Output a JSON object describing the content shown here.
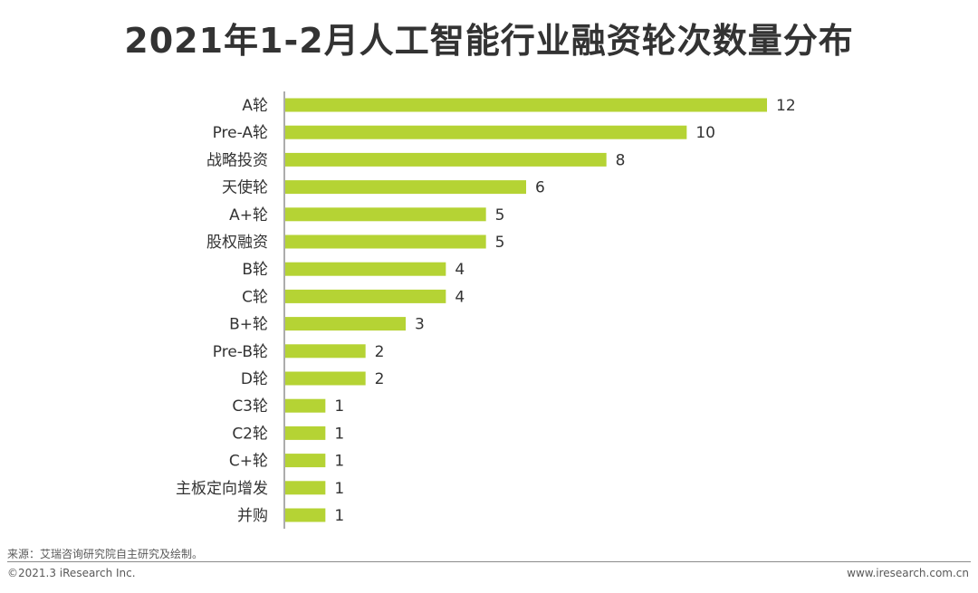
{
  "title": "2021年1-2月人工智能行业融资轮次数量分布",
  "footer": {
    "source": "来源：艾瑞咨询研究院自主研究及绘制。",
    "copyright": "©2021.3 iResearch Inc.",
    "website": "www.iresearch.com.cn"
  },
  "colors": {
    "bar": "#b5d334",
    "axis": "#595959",
    "text": "#333333"
  },
  "chart_data": {
    "type": "bar",
    "orientation": "horizontal",
    "categories": [
      "A轮",
      "Pre-A轮",
      "战略投资",
      "天使轮",
      "A+轮",
      "股权融资",
      "B轮",
      "C轮",
      "B+轮",
      "Pre-B轮",
      "D轮",
      "C3轮",
      "C2轮",
      "C+轮",
      "主板定向增发",
      "并购"
    ],
    "values": [
      12,
      10,
      8,
      6,
      5,
      5,
      4,
      4,
      3,
      2,
      2,
      1,
      1,
      1,
      1,
      1
    ],
    "title": "2021年1-2月人工智能行业融资轮次数量分布",
    "xlabel": "",
    "ylabel": "",
    "xlim": [
      0,
      12
    ],
    "grid": false,
    "legend": "none",
    "data_labels": true
  }
}
